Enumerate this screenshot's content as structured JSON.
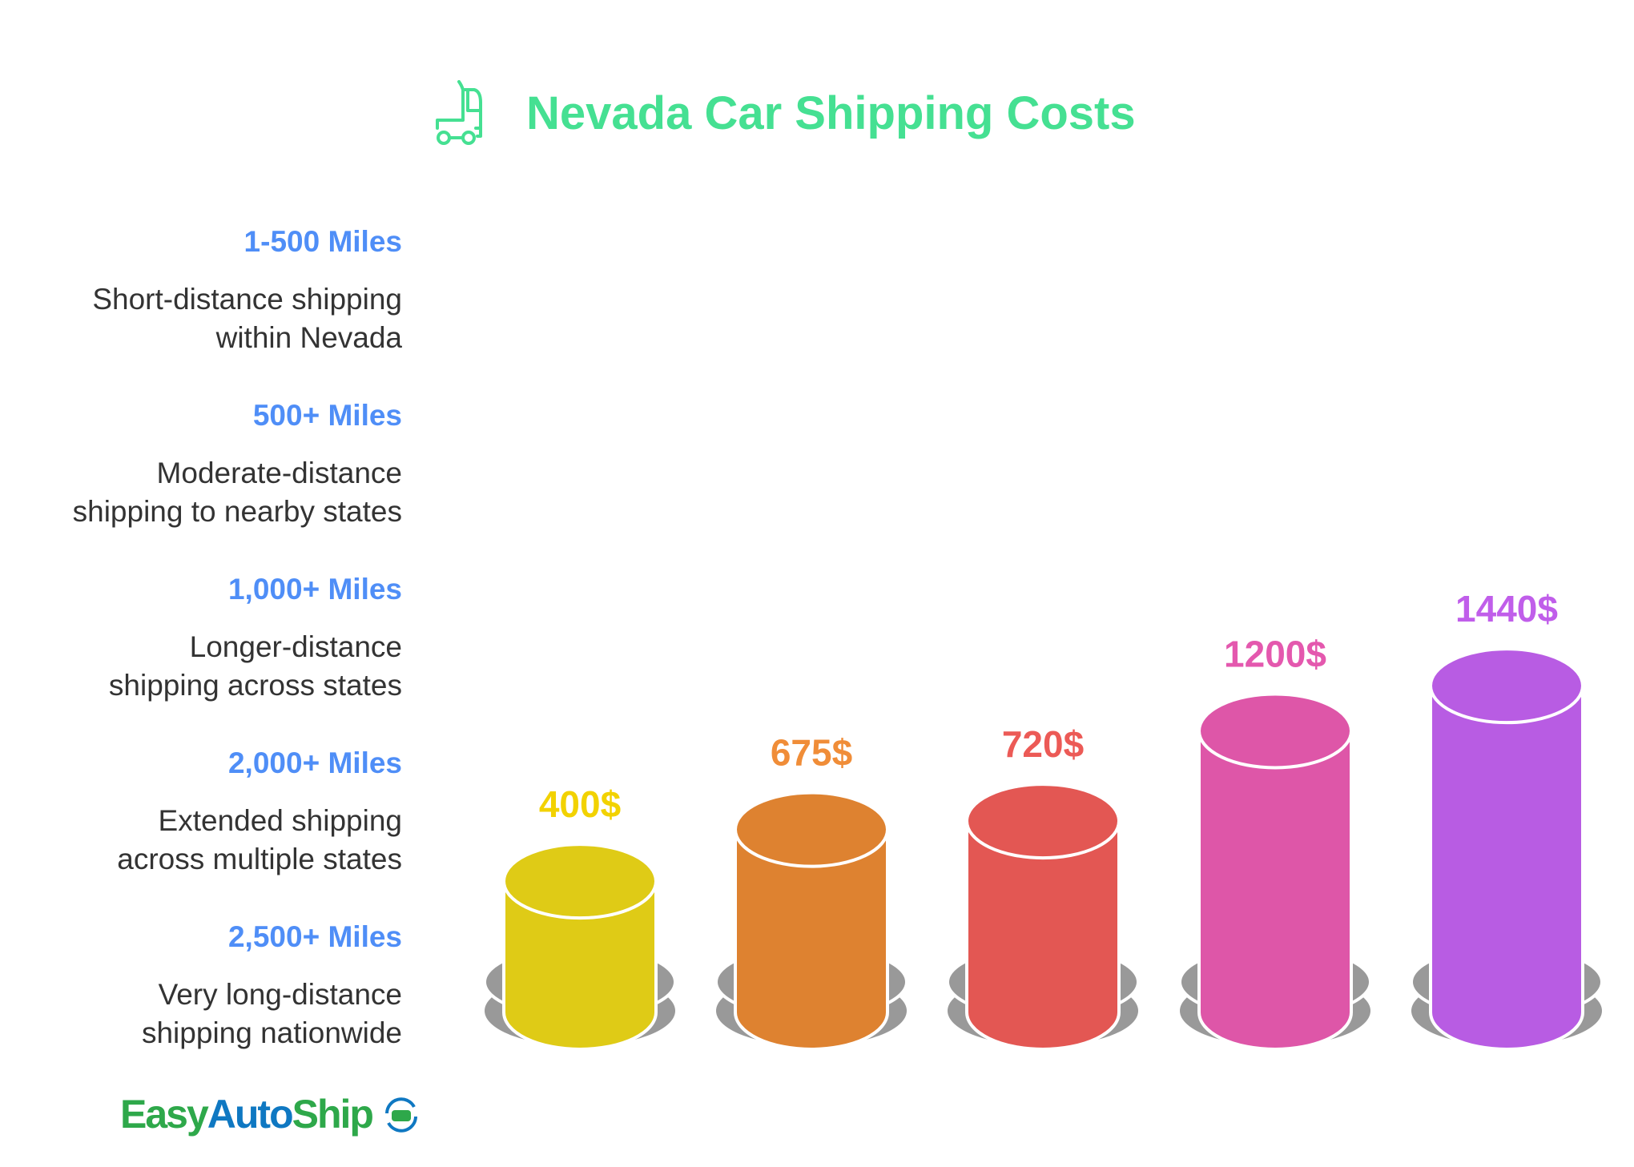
{
  "chart_data": {
    "type": "bar",
    "title": "Nevada Car Shipping Costs",
    "categories": [
      "1-500 Miles",
      "500+ Miles",
      "1,000+ Miles",
      "2,000+ Miles",
      "2,500+ Miles"
    ],
    "descriptions": [
      [
        "Short-distance shipping",
        "within Nevada"
      ],
      [
        "Moderate-distance",
        "shipping to nearby states"
      ],
      [
        "Longer-distance",
        "shipping across states"
      ],
      [
        "Extended shipping",
        "across multiple states"
      ],
      [
        "Very long-distance",
        "shipping nationwide"
      ]
    ],
    "values": [
      400,
      675,
      720,
      1200,
      1440
    ],
    "data_labels": [
      "400$",
      "675$",
      "720$",
      "1200$",
      "1440$"
    ],
    "colors": [
      "#DFCB16",
      "#DE8230",
      "#E35753",
      "#DE56A8",
      "#B85CE3"
    ],
    "label_colors": [
      "#F2D200",
      "#F08D38",
      "#EC5A56",
      "#E458AE",
      "#C05EEA"
    ],
    "title_color": "#45E092",
    "category_color": "#4F8EF7"
  },
  "logo": {
    "part1": "Easy",
    "part2": "Auto",
    "part3": "Ship"
  }
}
